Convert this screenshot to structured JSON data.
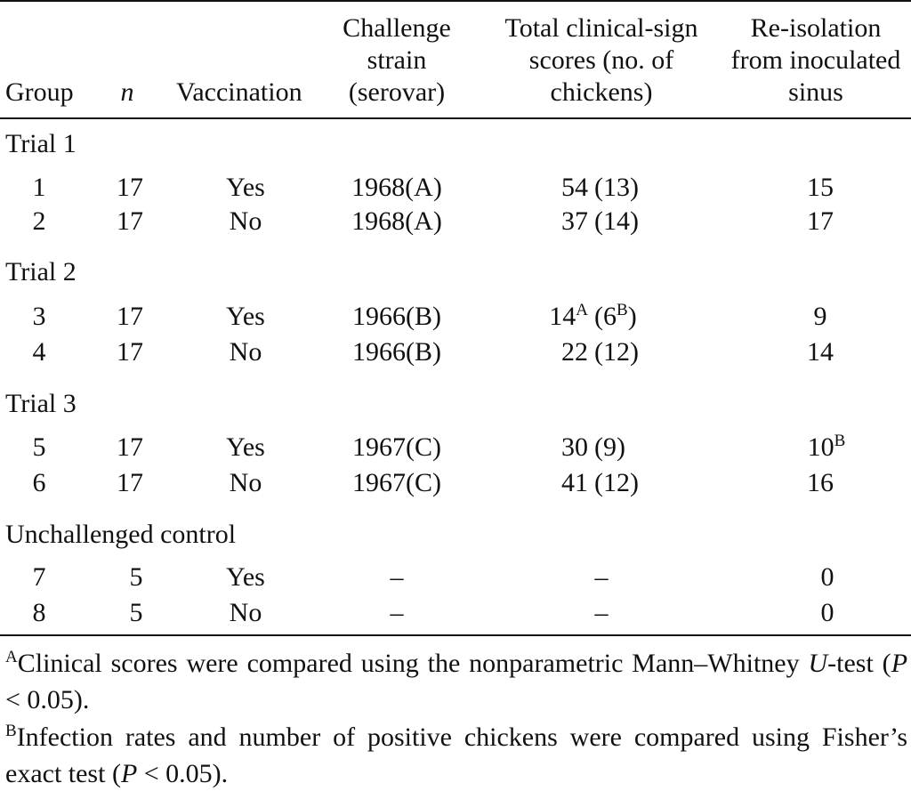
{
  "header": {
    "group": "Group",
    "n": "n",
    "vaccination": "Vaccination",
    "challenge": [
      "Challenge",
      "strain",
      "(serovar)"
    ],
    "scores": [
      "Total clinical-sign",
      "scores (no. of",
      "chickens)"
    ],
    "reisolation": [
      "Re-isolation",
      "from inoculated",
      "sinus"
    ]
  },
  "sections": [
    {
      "label": "Trial 1",
      "rows": [
        {
          "group": "1",
          "n": "17",
          "vaccination": "Yes",
          "strain": "1968(A)",
          "score": "54",
          "score_sup": "",
          "count": "(13)",
          "count_sup": "",
          "reiso": "15",
          "reiso_sup": ""
        },
        {
          "group": "2",
          "n": "17",
          "vaccination": "No",
          "strain": "1968(A)",
          "score": "37",
          "score_sup": "",
          "count": "(14)",
          "count_sup": "",
          "reiso": "17",
          "reiso_sup": ""
        }
      ]
    },
    {
      "label": "Trial 2",
      "rows": [
        {
          "group": "3",
          "n": "17",
          "vaccination": "Yes",
          "strain": "1966(B)",
          "score": "14",
          "score_sup": "A",
          "count": "(6",
          "count_sup": "B",
          "count_close": ")",
          "reiso": "9",
          "reiso_sup": ""
        },
        {
          "group": "4",
          "n": "17",
          "vaccination": "No",
          "strain": "1966(B)",
          "score": "22",
          "score_sup": "",
          "count": "(12)",
          "count_sup": "",
          "reiso": "14",
          "reiso_sup": ""
        }
      ]
    },
    {
      "label": "Trial 3",
      "rows": [
        {
          "group": "5",
          "n": "17",
          "vaccination": "Yes",
          "strain": "1967(C)",
          "score": "30",
          "score_sup": "",
          "count": "(9)",
          "count_sup": "",
          "reiso": "10",
          "reiso_sup": "B"
        },
        {
          "group": "6",
          "n": "17",
          "vaccination": "No",
          "strain": "1967(C)",
          "score": "41",
          "score_sup": "",
          "count": "(12)",
          "count_sup": "",
          "reiso": "16",
          "reiso_sup": ""
        }
      ]
    },
    {
      "label": "Unchallenged control",
      "rows": [
        {
          "group": "7",
          "n": "5",
          "vaccination": "Yes",
          "strain": "–",
          "dash": "–",
          "reiso": "0"
        },
        {
          "group": "8",
          "n": "5",
          "vaccination": "No",
          "strain": "–",
          "dash": "–",
          "reiso": "0"
        }
      ]
    }
  ],
  "footnotes": [
    {
      "mark": "A",
      "text_before": "Clinical scores were compared using the nonparametric Mann–Whitney ",
      "italic": "U",
      "text_mid": "-test (",
      "italic2": "P",
      "text_after": " < 0.05)."
    },
    {
      "mark": "B",
      "text_before": "Infection rates and number of positive chickens were compared using Fisher’s exact test (",
      "italic": "P",
      "text_after": " < 0.05)."
    }
  ]
}
